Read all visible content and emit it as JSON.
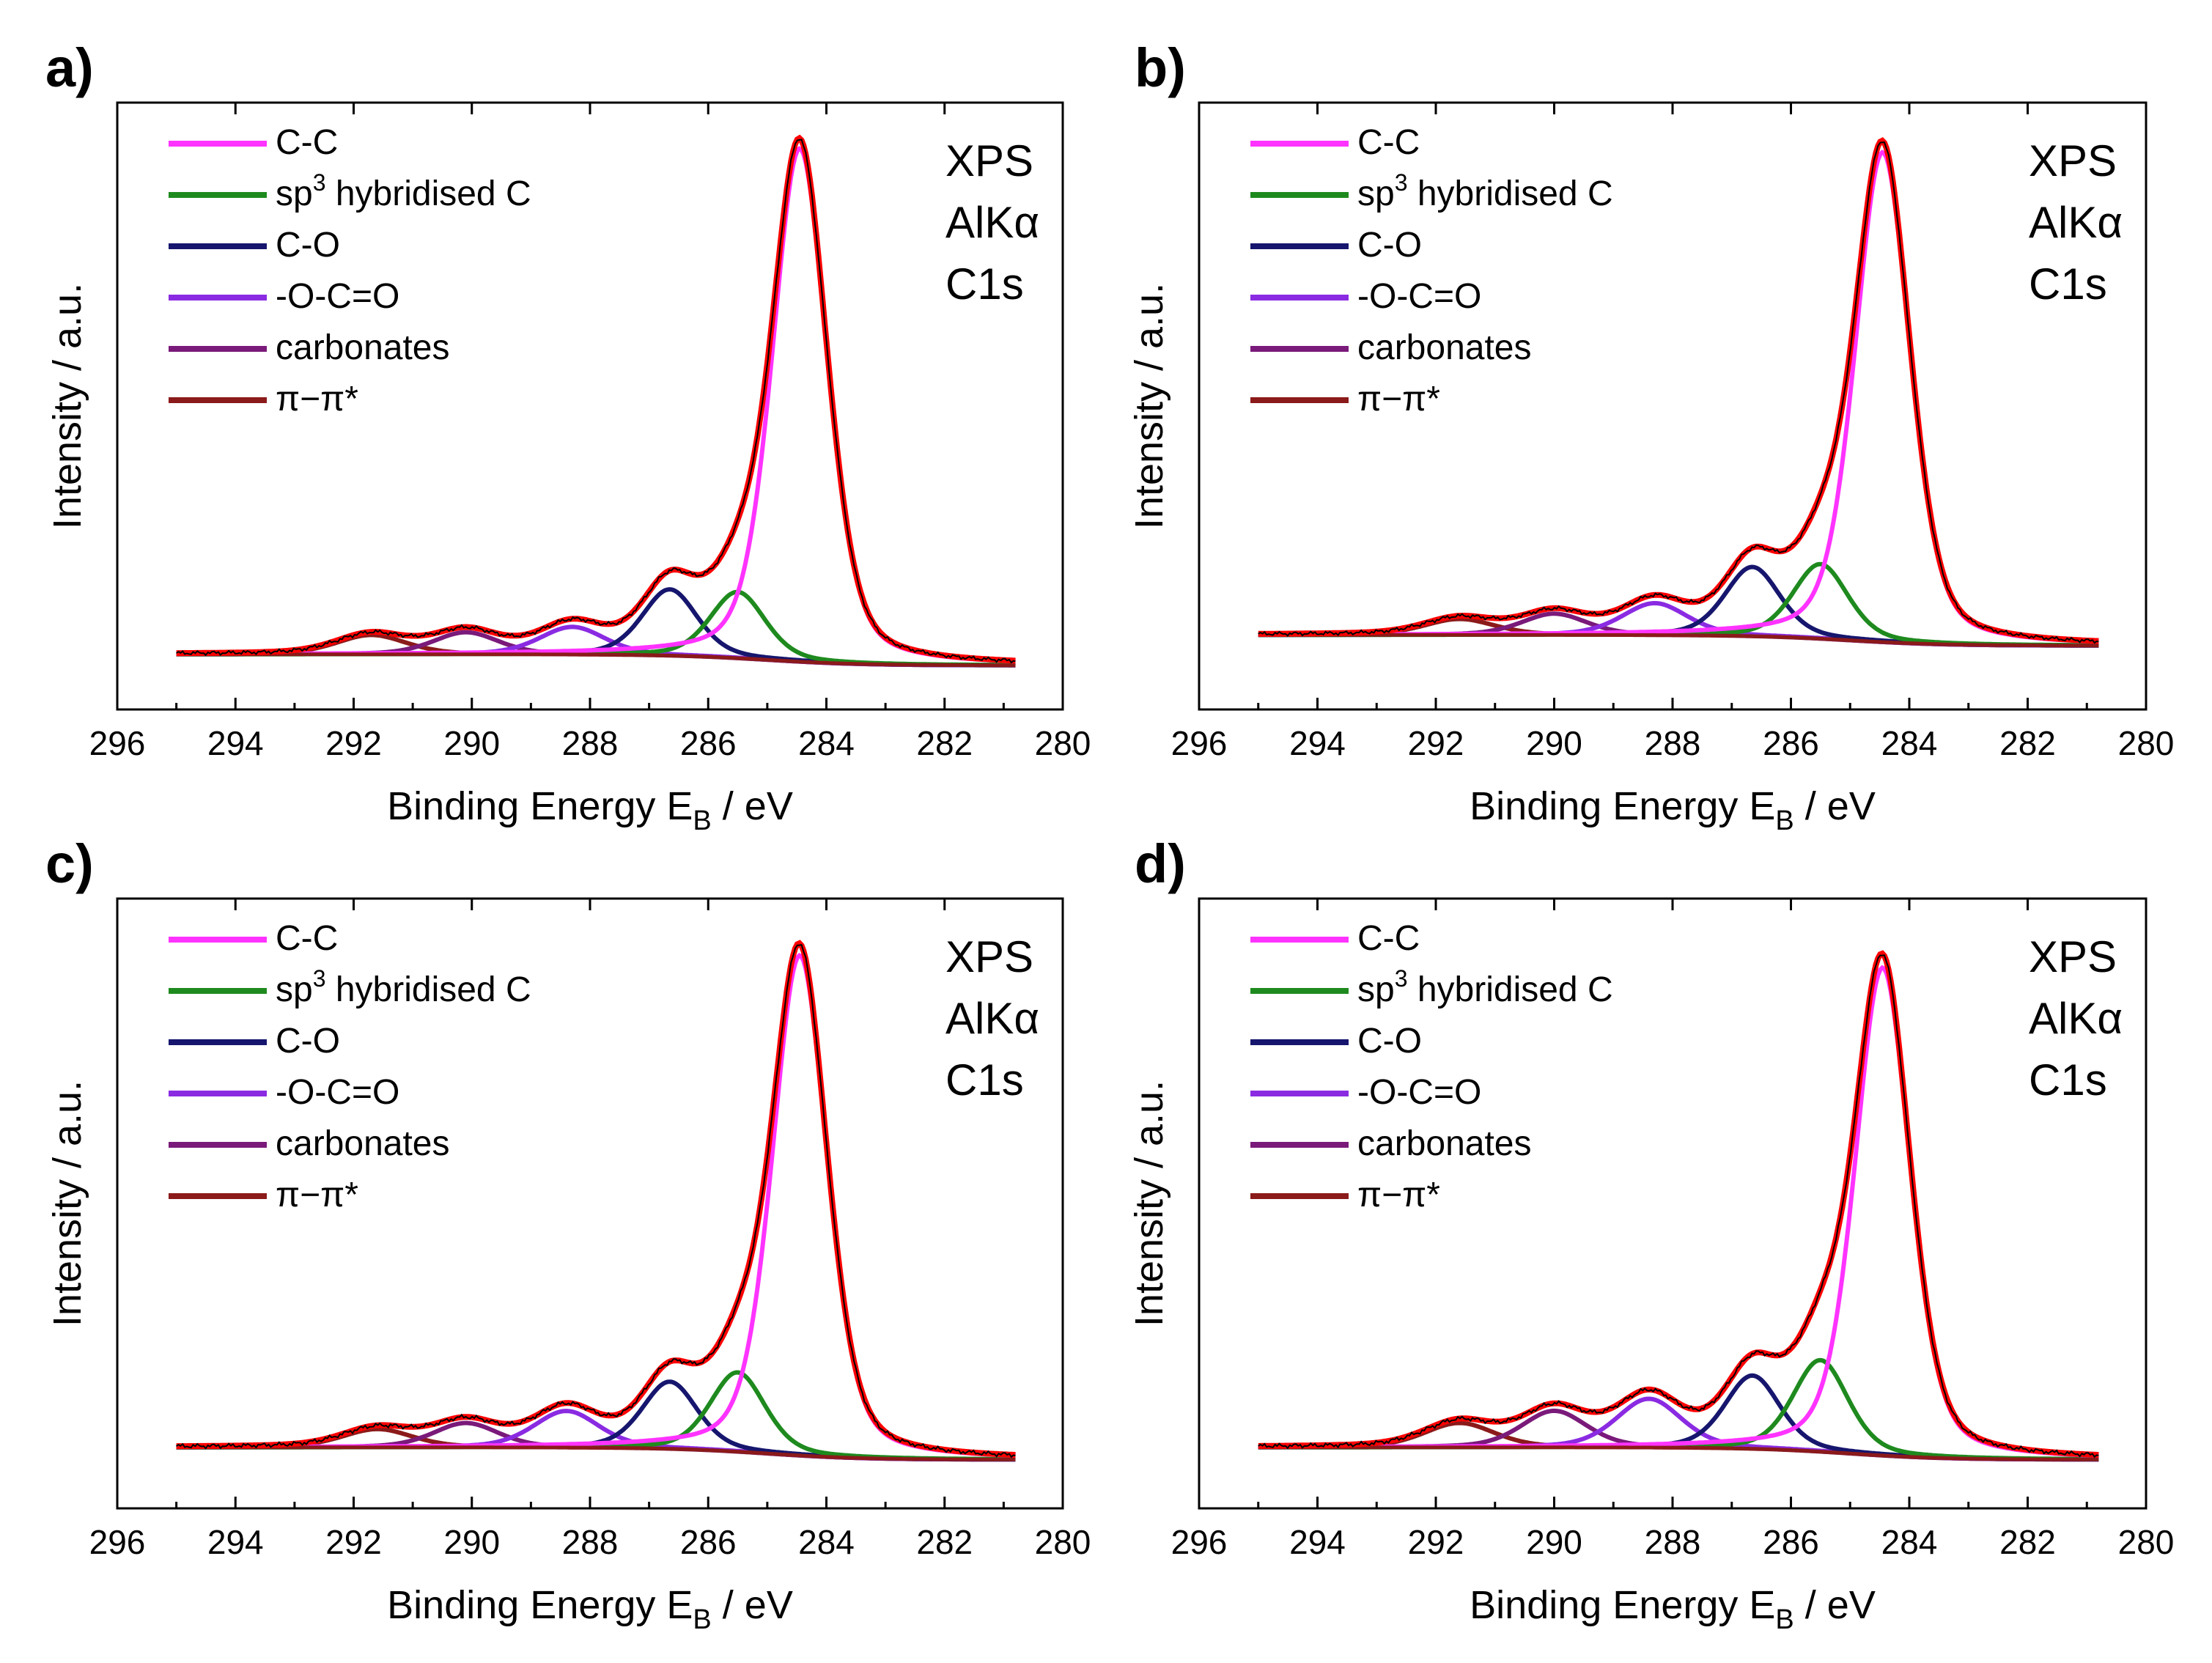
{
  "figure": {
    "description_free": true
  },
  "chart_data": [
    {
      "panel": "a)",
      "type": "line",
      "xlabel": "Binding Energy E",
      "xlabel_sub": "B",
      "xlabel_unit": " / eV",
      "ylabel": "Intensity / a.u.",
      "xlim": [
        296,
        280
      ],
      "xticks": [
        "296",
        "294",
        "292",
        "290",
        "288",
        "286",
        "284",
        "282",
        "280"
      ],
      "ylim": [
        -0.08,
        1.02
      ],
      "annotation": [
        "XPS",
        "AlKα",
        "C1s"
      ],
      "legend_position": "top-left",
      "baseline": {
        "start": 0.02,
        "end": 0.0,
        "center": 285.0,
        "width": 0.8
      },
      "components": [
        {
          "name": "C-C",
          "display": "C-C",
          "color": "#ff33ff",
          "center": 284.45,
          "amplitude": 0.93,
          "width": 0.55
        },
        {
          "name": "sp3 hybridised C",
          "display_main": "sp",
          "display_sup": "3",
          "display_rest": " hybridised C",
          "color": "#1e8a1e",
          "center": 285.5,
          "amplitude": 0.12,
          "width": 0.55
        },
        {
          "name": "C-O",
          "display": "C-O",
          "color": "#16166e",
          "center": 286.65,
          "amplitude": 0.12,
          "width": 0.55
        },
        {
          "name": "-O-C=O",
          "display": "-O-C=O",
          "color": "#8a2be2",
          "center": 288.3,
          "amplitude": 0.05,
          "width": 0.65
        },
        {
          "name": "carbonates",
          "display": "carbonates",
          "color": "#7a1a7a",
          "center": 290.1,
          "amplitude": 0.04,
          "width": 0.65
        },
        {
          "name": "π-π*",
          "display": "π−π*",
          "color": "#8b1a1a",
          "center": 291.7,
          "amplitude": 0.035,
          "width": 0.7
        }
      ],
      "envelope_color": "#ff0000"
    },
    {
      "panel": "b)",
      "type": "line",
      "xlabel": "Binding Energy E",
      "xlabel_sub": "B",
      "xlabel_unit": " / eV",
      "ylabel": "Intensity / a.u.",
      "xlim": [
        296,
        280
      ],
      "xticks": [
        "296",
        "294",
        "292",
        "290",
        "288",
        "286",
        "284",
        "282",
        "280"
      ],
      "ylim": [
        -0.12,
        1.02
      ],
      "annotation": [
        "XPS",
        "AlKα",
        "C1s"
      ],
      "legend_position": "top-left",
      "baseline": {
        "start": 0.02,
        "end": 0.0,
        "center": 285.0,
        "width": 0.8
      },
      "components": [
        {
          "name": "C-C",
          "display": "C-C",
          "color": "#ff33ff",
          "center": 284.45,
          "amplitude": 0.92,
          "width": 0.55
        },
        {
          "name": "sp3 hybridised C",
          "display_main": "sp",
          "display_sup": "3",
          "display_rest": " hybridised C",
          "color": "#1e8a1e",
          "center": 285.5,
          "amplitude": 0.14,
          "width": 0.55
        },
        {
          "name": "C-O",
          "display": "C-O",
          "color": "#16166e",
          "center": 286.65,
          "amplitude": 0.13,
          "width": 0.55
        },
        {
          "name": "-O-C=O",
          "display": "-O-C=O",
          "color": "#8a2be2",
          "center": 288.3,
          "amplitude": 0.06,
          "width": 0.65
        },
        {
          "name": "carbonates",
          "display": "carbonates",
          "color": "#7a1a7a",
          "center": 290.0,
          "amplitude": 0.04,
          "width": 0.65
        },
        {
          "name": "π-π*",
          "display": "π−π*",
          "color": "#8b1a1a",
          "center": 291.6,
          "amplitude": 0.03,
          "width": 0.7
        }
      ],
      "envelope_color": "#ff0000"
    },
    {
      "panel": "c)",
      "type": "line",
      "xlabel": "Binding Energy E",
      "xlabel_sub": "B",
      "xlabel_unit": " / eV",
      "ylabel": "Intensity / a.u.",
      "xlim": [
        296,
        280
      ],
      "xticks": [
        "296",
        "294",
        "292",
        "290",
        "288",
        "286",
        "284",
        "282",
        "280"
      ],
      "ylim": [
        -0.08,
        0.92
      ],
      "annotation": [
        "XPS",
        "AlKα",
        "C1s"
      ],
      "legend_position": "top-left",
      "baseline": {
        "start": 0.02,
        "end": 0.0,
        "center": 285.0,
        "width": 0.8
      },
      "components": [
        {
          "name": "C-C",
          "display": "C-C",
          "color": "#ff33ff",
          "center": 284.45,
          "amplitude": 0.82,
          "width": 0.55
        },
        {
          "name": "sp3 hybridised C",
          "display_main": "sp",
          "display_sup": "3",
          "display_rest": " hybridised C",
          "color": "#1e8a1e",
          "center": 285.5,
          "amplitude": 0.13,
          "width": 0.55
        },
        {
          "name": "C-O",
          "display": "C-O",
          "color": "#16166e",
          "center": 286.65,
          "amplitude": 0.11,
          "width": 0.55
        },
        {
          "name": "-O-C=O",
          "display": "-O-C=O",
          "color": "#8a2be2",
          "center": 288.4,
          "amplitude": 0.06,
          "width": 0.65
        },
        {
          "name": "carbonates",
          "display": "carbonates",
          "color": "#7a1a7a",
          "center": 290.1,
          "amplitude": 0.04,
          "width": 0.65
        },
        {
          "name": "π-π*",
          "display": "π−π*",
          "color": "#8b1a1a",
          "center": 291.6,
          "amplitude": 0.03,
          "width": 0.7
        }
      ],
      "envelope_color": "#ff0000"
    },
    {
      "panel": "d)",
      "type": "line",
      "xlabel": "Binding Energy E",
      "xlabel_sub": "B",
      "xlabel_unit": " / eV",
      "ylabel": "Intensity / a.u.",
      "xlim": [
        296,
        280
      ],
      "xticks": [
        "296",
        "294",
        "292",
        "290",
        "288",
        "286",
        "284",
        "282",
        "280"
      ],
      "ylim": [
        -0.08,
        0.92
      ],
      "annotation": [
        "XPS",
        "AlKα",
        "C1s"
      ],
      "legend_position": "top-left",
      "baseline": {
        "start": 0.02,
        "end": 0.0,
        "center": 285.0,
        "width": 0.8
      },
      "components": [
        {
          "name": "C-C",
          "display": "C-C",
          "color": "#ff33ff",
          "center": 284.45,
          "amplitude": 0.8,
          "width": 0.55
        },
        {
          "name": "sp3 hybridised C",
          "display_main": "sp",
          "display_sup": "3",
          "display_rest": " hybridised C",
          "color": "#1e8a1e",
          "center": 285.5,
          "amplitude": 0.15,
          "width": 0.55
        },
        {
          "name": "C-O",
          "display": "C-O",
          "color": "#16166e",
          "center": 286.65,
          "amplitude": 0.12,
          "width": 0.55
        },
        {
          "name": "-O-C=O",
          "display": "-O-C=O",
          "color": "#8a2be2",
          "center": 288.4,
          "amplitude": 0.08,
          "width": 0.65
        },
        {
          "name": "carbonates",
          "display": "carbonates",
          "color": "#7a1a7a",
          "center": 290.0,
          "amplitude": 0.06,
          "width": 0.65
        },
        {
          "name": "π-π*",
          "display": "π−π*",
          "color": "#8b1a1a",
          "center": 291.6,
          "amplitude": 0.04,
          "width": 0.7
        }
      ],
      "envelope_color": "#ff0000"
    }
  ]
}
